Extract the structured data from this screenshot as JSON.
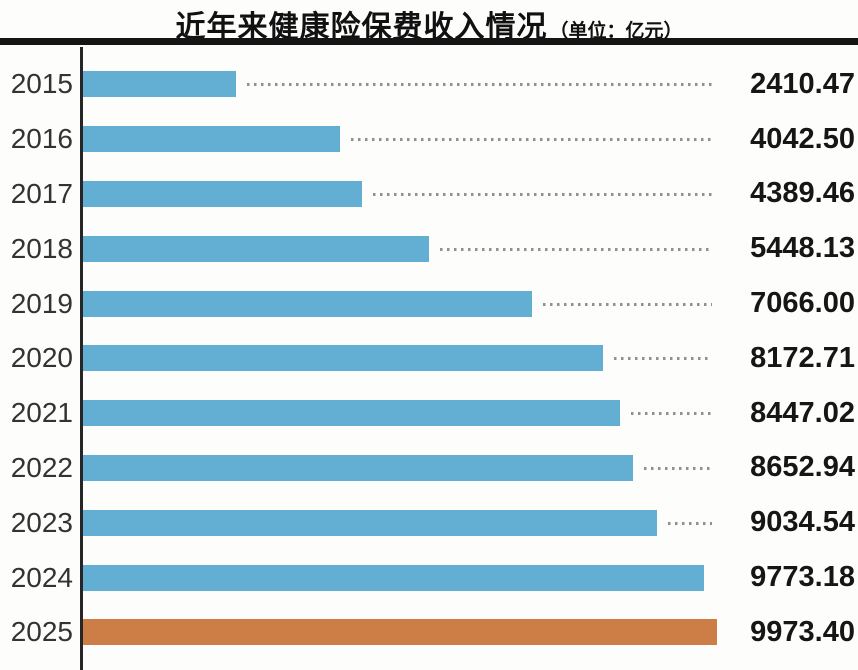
{
  "header": {
    "title": "近年来健康险保费收入情况",
    "unit": "（单位：亿元）"
  },
  "chart_data": {
    "type": "bar",
    "orientation": "horizontal",
    "title": "近年来健康险保费收入情况",
    "unit_label": "（单位：亿元）",
    "categories": [
      "2015",
      "2016",
      "2017",
      "2018",
      "2019",
      "2020",
      "2021",
      "2022",
      "2023",
      "2024",
      "2025"
    ],
    "values": [
      2410.47,
      4042.5,
      4389.46,
      5448.13,
      7066.0,
      8172.71,
      8447.02,
      8652.94,
      9034.54,
      9773.18,
      9973.4
    ],
    "value_labels": [
      "2410.47",
      "4042.50",
      "4389.46",
      "5448.13",
      "7066.00",
      "8172.71",
      "8447.02",
      "8652.94",
      "9034.54",
      "9773.18",
      "9973.40"
    ],
    "xlim": [
      0,
      9973.4
    ],
    "highlight_index": 10,
    "bar_color": "#63AFD4",
    "highlight_color": "#CC7E46",
    "leader_dot_color": "#909090",
    "legend": "none",
    "grid": "off"
  }
}
